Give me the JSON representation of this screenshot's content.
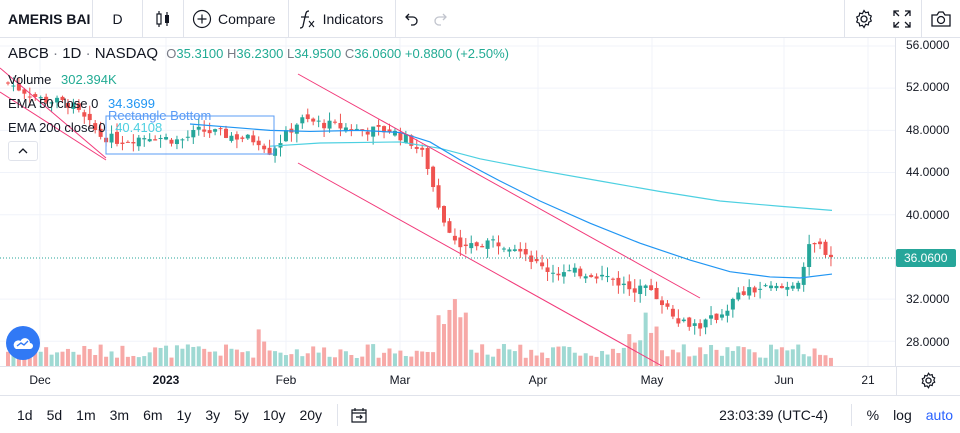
{
  "toolbar": {
    "symbol": "AMERIS BAI",
    "interval": "D",
    "compare_label": "Compare",
    "indicators_label": "Indicators"
  },
  "legend": {
    "symbol": "ABCB",
    "interval": "1D",
    "exchange": "NASDAQ",
    "open_label": "O",
    "open": "35.3100",
    "high_label": "H",
    "high": "36.2300",
    "low_label": "L",
    "low": "34.9500",
    "close_label": "C",
    "close": "36.0600",
    "change": "+0.8800 (+2.50%)",
    "volume_label": "Volume",
    "volume": "302.394K",
    "ema50_label": "EMA 50 close 0",
    "ema50": "34.3699",
    "ema200_label": "EMA 200 close 0",
    "ema200": "40.4108",
    "annotation": "Rectangle Bottom"
  },
  "price_axis": {
    "ticks": [
      "56.0000",
      "52.0000",
      "48.0000",
      "44.0000",
      "40.0000",
      "32.0000",
      "28.0000"
    ],
    "last_price": "36.0600"
  },
  "time_axis": {
    "labels": [
      "Dec",
      "2023",
      "Feb",
      "Mar",
      "Apr",
      "May",
      "Jun",
      "21"
    ]
  },
  "bottom": {
    "ranges": [
      "1d",
      "5d",
      "1m",
      "3m",
      "6m",
      "1y",
      "3y",
      "5y",
      "10y",
      "20y"
    ],
    "clock": "23:03:39 (UTC-4)",
    "percent_label": "%",
    "log_label": "log",
    "auto_label": "auto"
  },
  "colors": {
    "up": "#26a69a",
    "down": "#ef5350",
    "ema50": "#2196f3",
    "ema200": "#4dd0e1",
    "channel": "#f23a7a",
    "accent": "#2962ff"
  },
  "chart_data": {
    "type": "candlestick",
    "title": "",
    "ylim": [
      26,
      57
    ],
    "y_ticks": [
      28,
      32,
      40,
      44,
      48,
      52,
      56
    ],
    "x_labels": [
      "Dec",
      "2023",
      "Feb",
      "Mar",
      "Apr",
      "May",
      "Jun",
      "21"
    ],
    "last_price": 36.06,
    "ema50_end": 34.3699,
    "ema200_end": 40.4108,
    "grid": true
  }
}
